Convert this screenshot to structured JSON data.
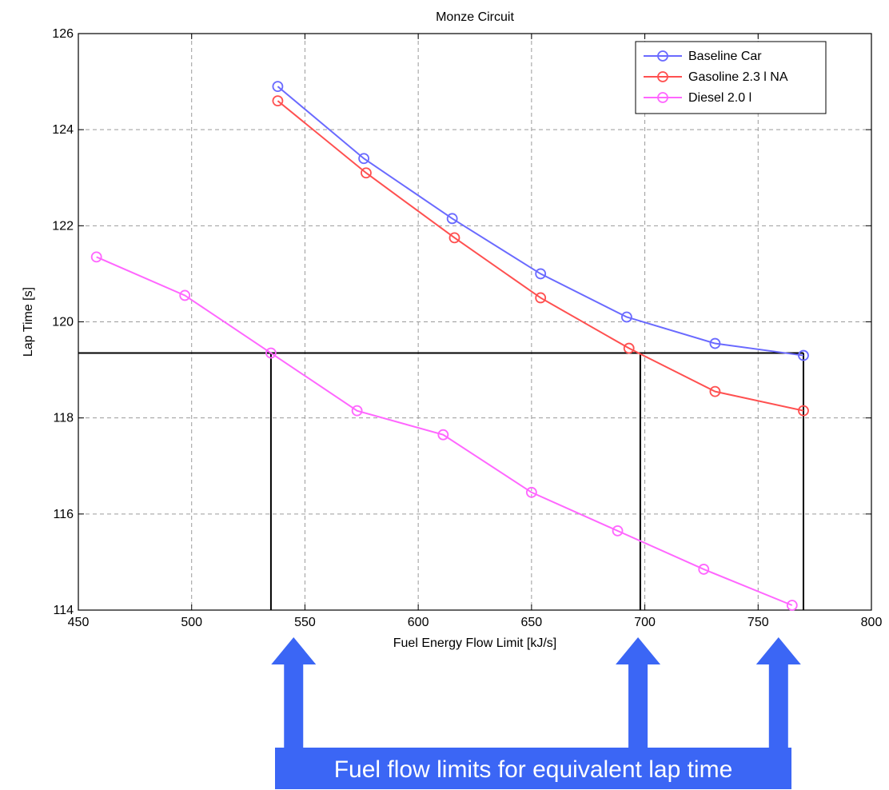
{
  "chart_data": {
    "type": "line",
    "title": "Monze Circuit",
    "xlabel": "Fuel Energy Flow Limit [kJ/s]",
    "ylabel": "Lap Time [s]",
    "xlim": [
      450,
      800
    ],
    "ylim": [
      114,
      126
    ],
    "xticks": [
      450,
      500,
      550,
      600,
      650,
      700,
      750,
      800
    ],
    "yticks": [
      114,
      116,
      118,
      120,
      122,
      124,
      126
    ],
    "grid": true,
    "legend_position": "top-right",
    "series": [
      {
        "name": "Baseline Car",
        "color": "#6a6aff",
        "marker": "circle",
        "x": [
          538,
          576,
          615,
          654,
          692,
          731,
          770
        ],
        "y": [
          124.9,
          123.4,
          122.15,
          121.0,
          120.1,
          119.55,
          119.3
        ]
      },
      {
        "name": "Gasoline 2.3 l NA",
        "color": "#ff5050",
        "marker": "circle",
        "x": [
          538,
          577,
          616,
          654,
          693,
          731,
          770
        ],
        "y": [
          124.6,
          123.1,
          121.75,
          120.5,
          119.45,
          118.55,
          118.15
        ]
      },
      {
        "name": "Diesel 2.0 l",
        "color": "#ff66ff",
        "marker": "circle",
        "x": [
          458,
          497,
          535,
          573,
          611,
          650,
          688,
          726,
          765
        ],
        "y": [
          121.35,
          120.55,
          119.35,
          118.15,
          117.65,
          116.45,
          115.65,
          114.85,
          114.1
        ]
      }
    ],
    "reference_lines": {
      "lap_time": 119.35,
      "fuel_flow_limits": [
        535,
        698,
        770
      ]
    },
    "annotation": {
      "text": "Fuel flow limits for equivalent lap time",
      "color": "#3b66f5"
    }
  }
}
